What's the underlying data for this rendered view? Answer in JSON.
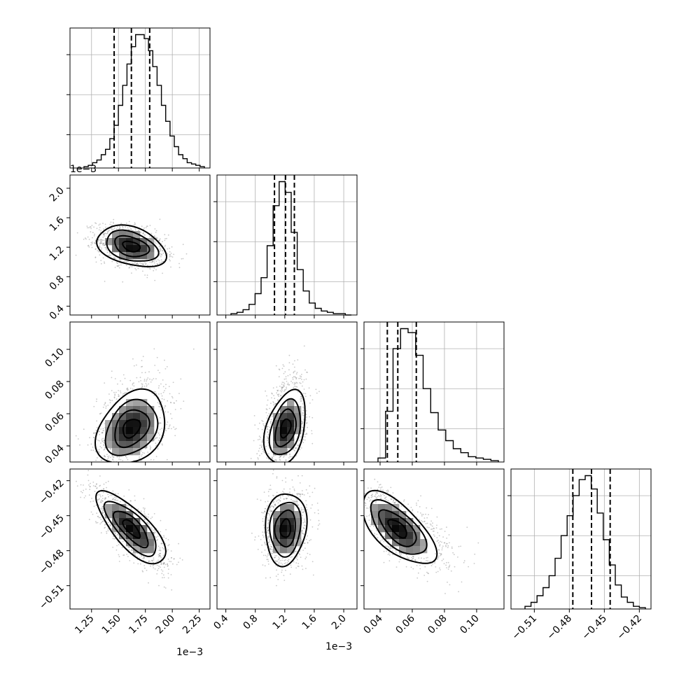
{
  "chart_data": {
    "type": "corner",
    "title": "",
    "n_params": 4,
    "parameters": [
      {
        "label": "",
        "range": [
          0.00105,
          0.00235
        ],
        "ticks": [
          0.00125,
          0.0015,
          0.00175,
          0.002,
          0.00225
        ],
        "tick_labels": [
          "1.25",
          "1.50",
          "1.75",
          "2.00",
          "2.25"
        ],
        "offset_label": "1e−3"
      },
      {
        "label": "",
        "range": [
          0.00028,
          0.00218
        ],
        "ticks": [
          0.0004,
          0.0008,
          0.0012,
          0.0016,
          0.002
        ],
        "tick_labels": [
          "0.4",
          "0.8",
          "1.2",
          "1.6",
          "2.0"
        ],
        "offset_label": "1e−3"
      },
      {
        "label": "",
        "range": [
          0.03,
          0.117
        ],
        "ticks": [
          0.04,
          0.06,
          0.08,
          0.1
        ],
        "tick_labels": [
          "0.04",
          "0.06",
          "0.08",
          "0.10"
        ],
        "offset_label": ""
      },
      {
        "label": "",
        "range": [
          -0.53,
          -0.41
        ],
        "ticks": [
          -0.51,
          -0.48,
          -0.45,
          -0.42
        ],
        "tick_labels": [
          "−0.51",
          "−0.48",
          "−0.45",
          "−0.42"
        ],
        "offset_label": ""
      }
    ],
    "quantiles": [
      [
        0.00146,
        0.00162,
        0.00179
      ],
      [
        0.00106,
        0.00121,
        0.00133
      ],
      [
        0.0445,
        0.051,
        0.0625
      ],
      [
        -0.477,
        -0.461,
        -0.445
      ]
    ],
    "histograms": [
      [
        1,
        2,
        4,
        6,
        10,
        14,
        22,
        32,
        47,
        62,
        78,
        91,
        100,
        100,
        97,
        88,
        76,
        62,
        47,
        35,
        24,
        16,
        10,
        7,
        4,
        3,
        2,
        1
      ],
      [
        1,
        2,
        4,
        8,
        16,
        28,
        52,
        82,
        100,
        92,
        62,
        34,
        18,
        9,
        5,
        3,
        2,
        1,
        1,
        0
      ],
      [
        3,
        38,
        85,
        100,
        97,
        80,
        55,
        37,
        24,
        16,
        10,
        7,
        4,
        3,
        2,
        1
      ],
      [
        2,
        5,
        10,
        16,
        25,
        38,
        55,
        70,
        85,
        97,
        100,
        90,
        72,
        52,
        33,
        18,
        9,
        5,
        2,
        1
      ]
    ],
    "pairs": [
      {
        "x": 0,
        "y": 1,
        "center": [
          0.00162,
          0.00121
        ],
        "sigma": [
          0.00016,
          0.00014
        ],
        "rho": -0.35
      },
      {
        "x": 0,
        "y": 2,
        "center": [
          0.00162,
          0.051
        ],
        "sigma": [
          0.00016,
          0.0115
        ],
        "rho": 0.3
      },
      {
        "x": 1,
        "y": 2,
        "center": [
          0.00121,
          0.051
        ],
        "sigma": [
          0.00014,
          0.0115
        ],
        "rho": 0.35
      },
      {
        "x": 0,
        "y": 3,
        "center": [
          0.00162,
          -0.461
        ],
        "sigma": [
          0.00016,
          0.0155
        ],
        "rho": -0.75
      },
      {
        "x": 1,
        "y": 3,
        "center": [
          0.00121,
          -0.461
        ],
        "sigma": [
          0.00014,
          0.0155
        ],
        "rho": 0.1
      },
      {
        "x": 2,
        "y": 3,
        "center": [
          0.051,
          -0.461
        ],
        "sigma": [
          0.0115,
          0.0155
        ],
        "rho": -0.65
      }
    ],
    "contour_levels_sigma": [
      0.5,
      1.0,
      1.5,
      2.0
    ],
    "grid": true,
    "colors": {
      "points": "#888888",
      "lines": "#000000",
      "density_max": "#000000"
    }
  }
}
